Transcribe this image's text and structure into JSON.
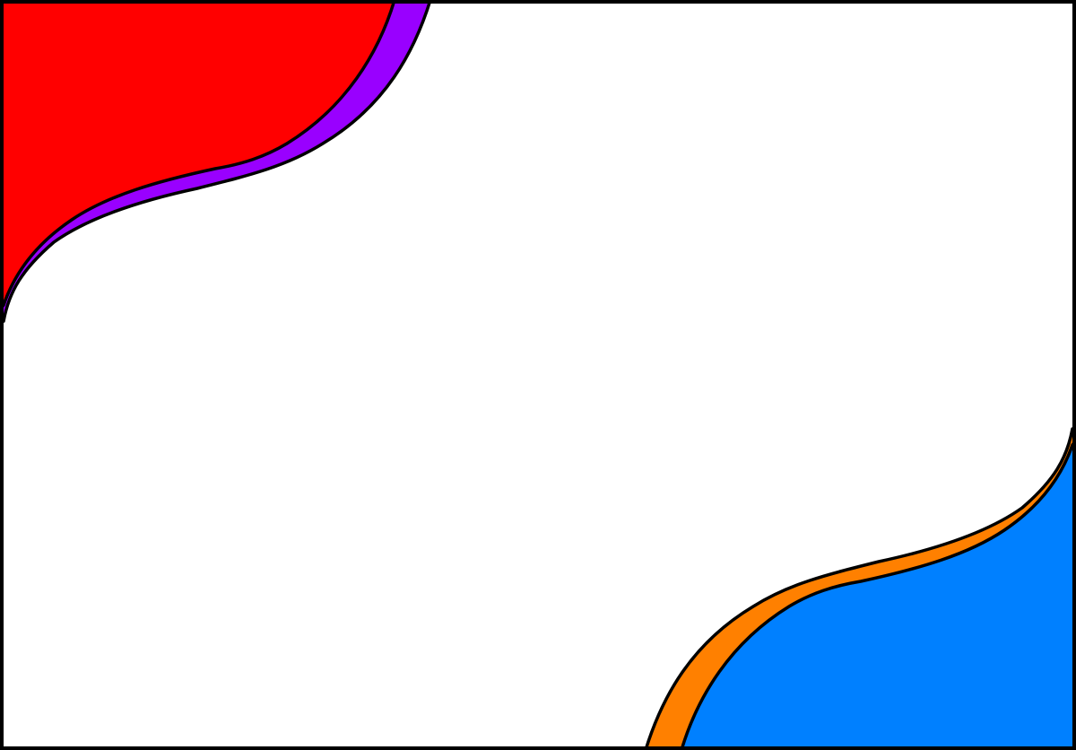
{
  "canvas": {
    "background": "#ffffff",
    "border_color": "#000000"
  },
  "shapes": {
    "top_left_inner": {
      "color": "#ff0000"
    },
    "top_left_band": {
      "color": "#9900ff"
    },
    "bottom_right_inner": {
      "color": "#0080ff"
    },
    "bottom_right_band": {
      "color": "#ff8000"
    }
  }
}
